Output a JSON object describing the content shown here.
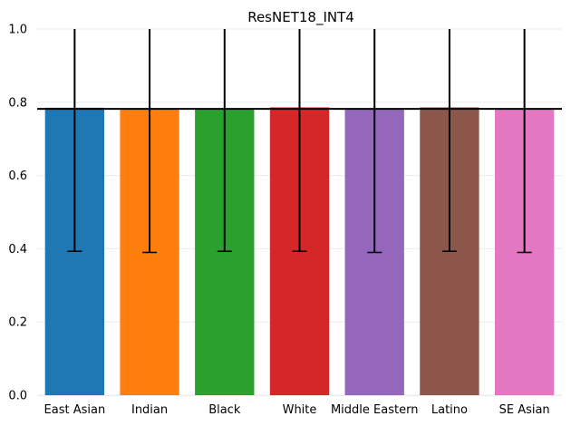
{
  "chart_data": {
    "type": "bar",
    "title": "ResNET18_INT4",
    "xlabel": "",
    "ylabel": "",
    "categories": [
      "East Asian",
      "Indian",
      "Black",
      "White",
      "Middle Eastern",
      "Latino",
      "SE Asian"
    ],
    "values": [
      0.785,
      0.782,
      0.782,
      0.786,
      0.782,
      0.786,
      0.781
    ],
    "error_bars": [
      {
        "lower": 0.393,
        "upper": 1.0
      },
      {
        "lower": 0.39,
        "upper": 1.0
      },
      {
        "lower": 0.393,
        "upper": 1.0
      },
      {
        "lower": 0.393,
        "upper": 1.0
      },
      {
        "lower": 0.39,
        "upper": 1.0
      },
      {
        "lower": 0.393,
        "upper": 1.0
      },
      {
        "lower": 0.39,
        "upper": 1.0
      }
    ],
    "reference_line": 0.782,
    "colors": [
      "#1f77b4",
      "#ff7f0e",
      "#2ca02c",
      "#d62728",
      "#9467bd",
      "#8c564b",
      "#e377c2"
    ],
    "ylim": [
      0.0,
      1.0
    ],
    "yticks": [
      "0.0",
      "0.2",
      "0.4",
      "0.6",
      "0.8",
      "1.0"
    ],
    "grid": true
  }
}
